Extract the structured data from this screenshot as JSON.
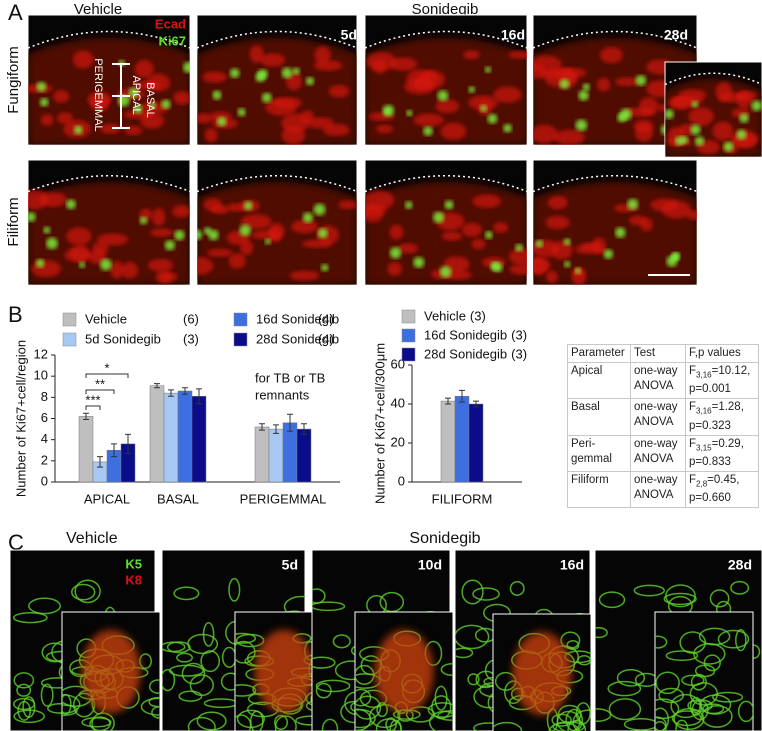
{
  "panel_a": {
    "letter": "A",
    "vehicle": "Vehicle",
    "sonidegib": "Sonidegib",
    "row_labels": [
      "Fungiform",
      "Filiform"
    ],
    "timepoints": [
      "5d",
      "16d",
      "28d"
    ],
    "stain_labels": [
      "Ecad",
      "Ki67"
    ],
    "region_labels": [
      "APICAL",
      "BASAL",
      "PERIGEMMAL"
    ]
  },
  "panel_b": {
    "letter": "B"
  },
  "chart_data": [
    {
      "type": "bar",
      "ylabel": "Number of Ki67+cell/region",
      "categories": [
        "APICAL",
        "BASAL",
        "PERIGEMMAL"
      ],
      "series": [
        {
          "name": "Vehicle",
          "n": "(6)",
          "color": "#bfbfbf",
          "values": [
            6.2,
            9.1,
            5.2
          ],
          "errors": [
            0.3,
            0.2,
            0.3
          ]
        },
        {
          "name": "5d Sonidegib",
          "n": "(3)",
          "color": "#a6c8f2",
          "values": [
            1.9,
            8.4,
            5.0
          ],
          "errors": [
            0.5,
            0.3,
            0.4
          ]
        },
        {
          "name": "16d Sonidegib",
          "n": "(4)",
          "color": "#3e6fe0",
          "values": [
            3.0,
            8.6,
            5.6
          ],
          "errors": [
            0.6,
            0.3,
            0.8
          ]
        },
        {
          "name": "28d Sonidegib",
          "n": "(4)",
          "color": "#0a0c8a",
          "values": [
            3.6,
            8.1,
            5.0
          ],
          "errors": [
            0.9,
            0.7,
            0.5
          ]
        }
      ],
      "ylim": [
        0,
        12
      ],
      "yticks": [
        0,
        2,
        4,
        6,
        8,
        10,
        12
      ],
      "significance": [
        "***",
        "**",
        "*"
      ],
      "annotation": [
        "for TB or TB",
        "remnants"
      ]
    },
    {
      "type": "bar",
      "ylabel": "Number of Ki67+cell/300μm",
      "categories": [
        "FILIFORM"
      ],
      "series": [
        {
          "name": "Vehicle",
          "n": "(3)",
          "color": "#bfbfbf",
          "values": [
            41.5
          ],
          "errors": [
            1.5
          ]
        },
        {
          "name": "16d Sonidegib",
          "n": "(3)",
          "color": "#3e6fe0",
          "values": [
            44
          ],
          "errors": [
            3
          ]
        },
        {
          "name": "28d Sonidegib",
          "n": "(3)",
          "color": "#0a0c8a",
          "values": [
            40
          ],
          "errors": [
            1.5
          ]
        }
      ],
      "ylim": [
        0,
        60
      ],
      "yticks": [
        0,
        20,
        40,
        60
      ]
    }
  ],
  "table": {
    "header": [
      "Parameter",
      "Test",
      "F,p values"
    ],
    "rows": [
      [
        "Apical",
        "one-way ANOVA",
        {
          "f": "F",
          "df": "3,16",
          "stat": "=10.12,",
          "p": "p=0.001"
        }
      ],
      [
        "Basal",
        "one-way ANOVA",
        {
          "f": "F",
          "df": "3,16",
          "stat": "=1.28,",
          "p": "p=0.323"
        }
      ],
      [
        "Peri-gemmal",
        "one-way ANOVA",
        {
          "f": "F",
          "df": "3,15",
          "stat": "=0.29,",
          "p": "p=0.833"
        }
      ],
      [
        "Filiform",
        "one-way ANOVA",
        {
          "f": "F",
          "df": "2,8",
          "stat": "=0.45,",
          "p": "p=0.660"
        }
      ]
    ]
  },
  "panel_c": {
    "letter": "C",
    "vehicle": "Vehicle",
    "sonidegib": "Sonidegib",
    "timepoints": [
      "5d",
      "10d",
      "16d",
      "28d"
    ],
    "stain_labels": [
      "K5",
      "K8"
    ]
  }
}
